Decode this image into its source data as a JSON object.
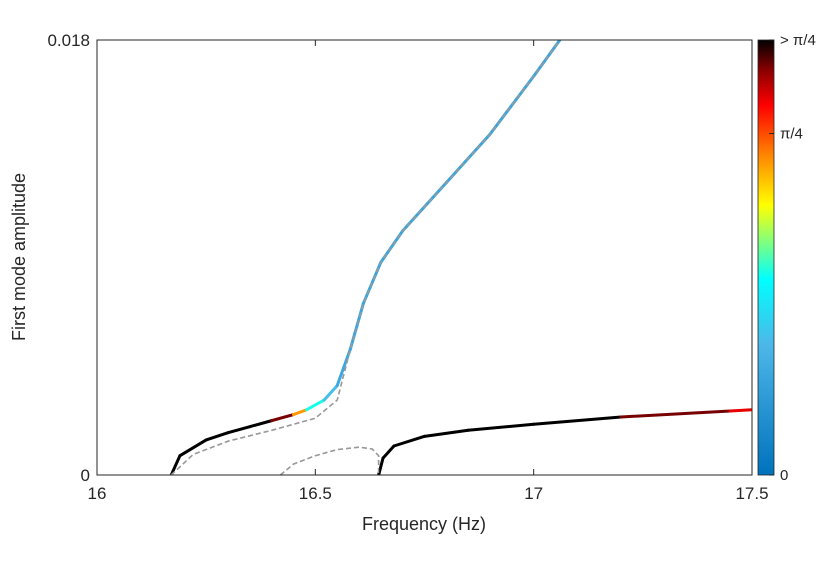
{
  "chart_data": {
    "type": "line",
    "title": "",
    "xlabel": "Frequency (Hz)",
    "ylabel": "First mode amplitude",
    "xlim": [
      16,
      17.5
    ],
    "ylim": [
      0,
      0.018
    ],
    "x_ticks": [
      "16",
      "16.5",
      "17",
      "17.5"
    ],
    "y_ticks": [
      "0",
      "0.018"
    ],
    "grid": false,
    "legend": "none",
    "colorbar": {
      "ticks": [
        "0",
        "π/4",
        "> π/4"
      ],
      "colormap": "jet-like (blue → cyan → yellow → red → black)"
    },
    "series": [
      {
        "style": "solid, colored by colorbar value",
        "x": [
          16.17,
          16.19,
          16.25,
          16.3,
          16.35,
          16.4,
          16.45,
          16.48,
          16.52,
          16.55,
          16.58,
          16.61,
          16.65,
          16.7,
          16.8,
          16.9,
          17.0,
          17.06
        ],
        "y": [
          0.0,
          0.0008,
          0.00145,
          0.00175,
          0.002,
          0.00225,
          0.0025,
          0.0027,
          0.0031,
          0.0037,
          0.0052,
          0.0071,
          0.0088,
          0.0101,
          0.0121,
          0.0141,
          0.0165,
          0.018
        ],
        "phase_fraction": [
          1.0,
          1.0,
          1.0,
          1.0,
          1.0,
          1.0,
          0.88,
          0.55,
          0.38,
          0.25,
          0.22,
          0.22,
          0.22,
          0.22,
          0.22,
          0.22,
          0.22,
          0.22
        ]
      },
      {
        "style": "dashed gray",
        "x": [
          16.17,
          16.22,
          16.3,
          16.4,
          16.45,
          16.5,
          16.55,
          16.58,
          16.61,
          16.65,
          16.7,
          16.8,
          16.9,
          17.0,
          17.06
        ],
        "y": [
          0.0,
          0.00085,
          0.0014,
          0.00185,
          0.0021,
          0.00235,
          0.0031,
          0.0052,
          0.0071,
          0.0088,
          0.0101,
          0.0121,
          0.0141,
          0.0165,
          0.018
        ]
      },
      {
        "style": "dashed gray",
        "x": [
          16.42,
          16.45,
          16.5,
          16.55,
          16.6,
          16.63,
          16.645,
          16.645
        ],
        "y": [
          0.0,
          0.00045,
          0.0008,
          0.00105,
          0.00115,
          0.00108,
          0.0008,
          0.0
        ]
      },
      {
        "style": "solid, colored by colorbar value",
        "x": [
          16.645,
          16.655,
          16.68,
          16.75,
          16.85,
          17.0,
          17.2,
          17.45,
          17.5
        ],
        "y": [
          0.0,
          0.0007,
          0.0012,
          0.0016,
          0.00185,
          0.0021,
          0.0024,
          0.00265,
          0.0027
        ],
        "phase_fraction": [
          1.0,
          1.0,
          1.0,
          1.0,
          1.0,
          1.0,
          1.0,
          0.88,
          0.85
        ]
      }
    ]
  }
}
